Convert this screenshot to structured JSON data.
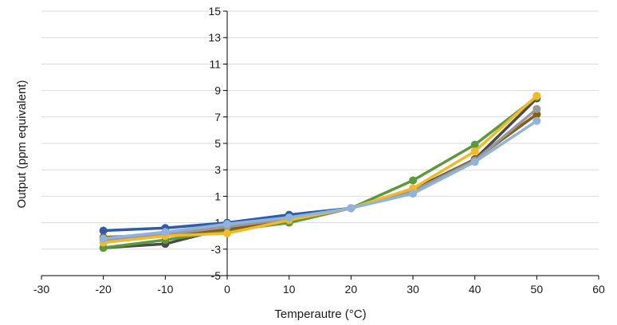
{
  "chart_data": {
    "type": "line",
    "title": "",
    "xlabel": "Temperautre (°C)",
    "ylabel": "Output (ppm equivalent)",
    "xlim": [
      -30,
      60
    ],
    "ylim": [
      -5,
      15
    ],
    "xticks": [
      -30,
      -20,
      -10,
      0,
      10,
      20,
      30,
      40,
      50,
      60
    ],
    "yticks": [
      -5,
      -3,
      -1,
      1,
      3,
      5,
      7,
      9,
      11,
      13,
      15
    ],
    "grid": "horizontal",
    "legend": "none",
    "series": [
      {
        "color": "#4a4a4a",
        "x": [
          -20,
          -10,
          0,
          10,
          20,
          30,
          40,
          50
        ],
        "y": [
          -2.9,
          -2.6,
          -1.4,
          -0.9,
          0.1,
          1.5,
          3.8,
          8.4
        ]
      },
      {
        "color": "#5b9a3b",
        "x": [
          -20,
          -10,
          0,
          10,
          20,
          30,
          40,
          50
        ],
        "y": [
          -2.9,
          -2.3,
          -1.6,
          -1.0,
          0.1,
          2.2,
          4.9,
          8.5
        ]
      },
      {
        "color": "#2f5ba8",
        "x": [
          -20,
          -10,
          0,
          10,
          20,
          30,
          40,
          50
        ],
        "y": [
          -1.6,
          -1.4,
          -1.0,
          -0.4,
          0.1,
          1.4,
          3.8,
          7.2
        ]
      },
      {
        "color": "#8a5c10",
        "x": [
          -20,
          -10,
          0,
          10,
          20,
          30,
          40,
          50
        ],
        "y": [
          -2.1,
          -1.9,
          -1.5,
          -0.8,
          0.1,
          1.4,
          3.8,
          7.2
        ]
      },
      {
        "color": "#999999",
        "x": [
          -20,
          -10,
          0,
          10,
          20,
          30,
          40,
          50
        ],
        "y": [
          -2.3,
          -1.9,
          -1.3,
          -0.7,
          0.1,
          1.4,
          3.7,
          7.6
        ]
      },
      {
        "color": "#f2b92b",
        "x": [
          -20,
          -10,
          0,
          10,
          20,
          30,
          40,
          50
        ],
        "y": [
          -2.5,
          -2.0,
          -1.8,
          -0.8,
          0.1,
          1.6,
          4.4,
          8.6
        ]
      },
      {
        "color": "#8fb3de",
        "x": [
          -20,
          -10,
          0,
          10,
          20,
          30,
          40,
          50
        ],
        "y": [
          -2.2,
          -1.7,
          -1.1,
          -0.6,
          0.1,
          1.2,
          3.6,
          6.7
        ]
      }
    ]
  }
}
